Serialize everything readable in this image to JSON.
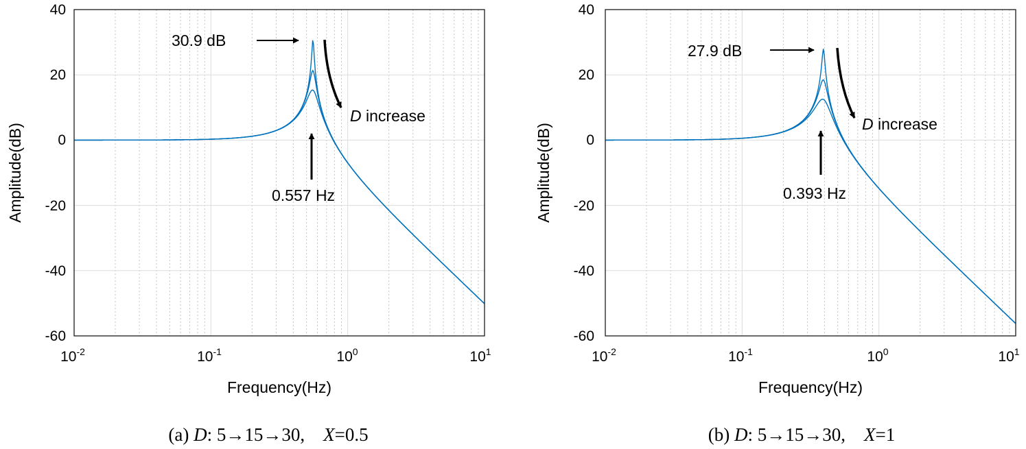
{
  "colors": {
    "series": "#0072BD",
    "annotation": "#000000"
  },
  "chart_data": [
    {
      "type": "line",
      "xscale": "log",
      "xlim": [
        0.01,
        10
      ],
      "ylim": [
        -60,
        40
      ],
      "xlabel": "Frequency(Hz)",
      "ylabel": "Amplitude(dB)",
      "x_ticks": [
        {
          "base": "10",
          "exp": "-2"
        },
        {
          "base": "10",
          "exp": "-1"
        },
        {
          "base": "10",
          "exp": "0"
        },
        {
          "base": "10",
          "exp": "1"
        }
      ],
      "y_ticks": [
        "40",
        "20",
        "0",
        "-20",
        "-40",
        "-60"
      ],
      "grid": true,
      "model": {
        "fn_hz": 0.557,
        "asymptote_db_at_10hz": -50.3
      },
      "series": [
        {
          "name": "D=5",
          "peak_db": 30.9
        },
        {
          "name": "D=15",
          "peak_db": 21.2
        },
        {
          "name": "D=30",
          "peak_db": 15.2
        }
      ],
      "annotations": {
        "peak_label": "30.9 dB",
        "freq_label": "0.557 Hz",
        "trend_italic": "D",
        "trend_text": " increase"
      },
      "caption": {
        "prefix": "(a) ",
        "d": "D",
        "d_rest": ": 5→15→30,    ",
        "x": "X",
        "x_rest": "=0.5"
      }
    },
    {
      "type": "line",
      "xscale": "log",
      "xlim": [
        0.01,
        10
      ],
      "ylim": [
        -60,
        40
      ],
      "xlabel": "Frequency(Hz)",
      "ylabel": "Amplitude(dB)",
      "x_ticks": [
        {
          "base": "10",
          "exp": "-2"
        },
        {
          "base": "10",
          "exp": "-1"
        },
        {
          "base": "10",
          "exp": "0"
        },
        {
          "base": "10",
          "exp": "1"
        }
      ],
      "y_ticks": [
        "40",
        "20",
        "0",
        "-20",
        "-40",
        "-60"
      ],
      "grid": true,
      "model": {
        "fn_hz": 0.393,
        "asymptote_db_at_10hz": -56.3
      },
      "series": [
        {
          "name": "D=5",
          "peak_db": 27.9
        },
        {
          "name": "D=15",
          "peak_db": 18.4
        },
        {
          "name": "D=30",
          "peak_db": 12.4
        }
      ],
      "annotations": {
        "peak_label": "27.9 dB",
        "freq_label": "0.393 Hz",
        "trend_italic": "D",
        "trend_text": " increase"
      },
      "caption": {
        "prefix": "(b) ",
        "d": "D",
        "d_rest": ": 5→15→30,    ",
        "x": "X",
        "x_rest": "=1"
      }
    }
  ]
}
